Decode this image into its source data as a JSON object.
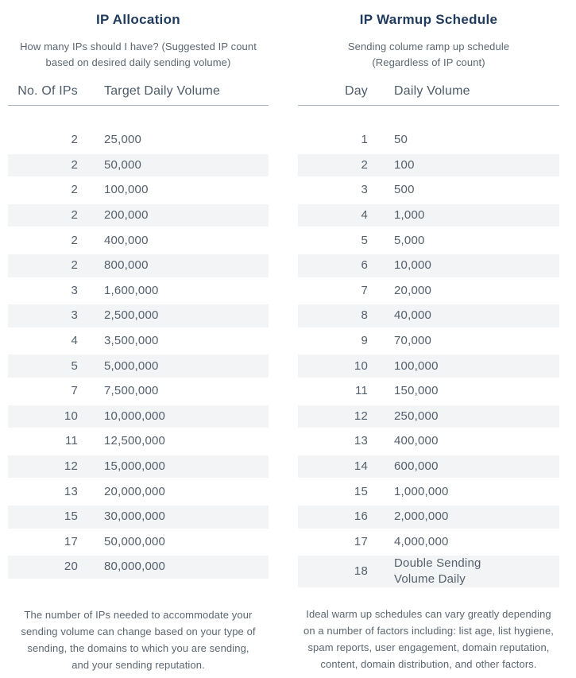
{
  "chart_data": [
    {
      "type": "table",
      "title": "IP Allocation",
      "subtitle": "How many IPs should I have? (Suggested IP count\nbased on desired daily sending volume)",
      "columns": [
        "No. Of IPs",
        "Target Daily Volume"
      ],
      "rows": [
        [
          "2",
          "25,000"
        ],
        [
          "2",
          "50,000"
        ],
        [
          "2",
          "100,000"
        ],
        [
          "2",
          "200,000"
        ],
        [
          "2",
          "400,000"
        ],
        [
          "2",
          "800,000"
        ],
        [
          "3",
          "1,600,000"
        ],
        [
          "3",
          "2,500,000"
        ],
        [
          "4",
          "3,500,000"
        ],
        [
          "5",
          "5,000,000"
        ],
        [
          "7",
          "7,500,000"
        ],
        [
          "10",
          "10,000,000"
        ],
        [
          "11",
          "12,500,000"
        ],
        [
          "12",
          "15,000,000"
        ],
        [
          "13",
          "20,000,000"
        ],
        [
          "15",
          "30,000,000"
        ],
        [
          "17",
          "50,000,000"
        ],
        [
          "20",
          "80,000,000"
        ]
      ],
      "footnote": "The number of IPs needed to accommodate your\nsending volume can change based on your type of\nsending, the domains to which you are sending,\nand your sending reputation.",
      "layout": {
        "zebra": "even rows shaded",
        "grid": "off",
        "header_divider": true
      }
    },
    {
      "type": "table",
      "title": "IP Warmup Schedule",
      "subtitle": "Sending colume ramp up schedule\n(Regardless of IP count)",
      "columns": [
        "Day",
        "Daily Volume"
      ],
      "rows": [
        [
          "1",
          "50"
        ],
        [
          "2",
          "100"
        ],
        [
          "3",
          "500"
        ],
        [
          "4",
          "1,000"
        ],
        [
          "5",
          "5,000"
        ],
        [
          "6",
          "10,000"
        ],
        [
          "7",
          "20,000"
        ],
        [
          "8",
          "40,000"
        ],
        [
          "9",
          "70,000"
        ],
        [
          "10",
          "100,000"
        ],
        [
          "11",
          "150,000"
        ],
        [
          "12",
          "250,000"
        ],
        [
          "13",
          "400,000"
        ],
        [
          "14",
          "600,000"
        ],
        [
          "15",
          "1,000,000"
        ],
        [
          "16",
          "2,000,000"
        ],
        [
          "17",
          "4,000,000"
        ],
        [
          "18",
          "Double Sending\nVolume Daily"
        ]
      ],
      "footnote": "Ideal warm up schedules can vary greatly depending\non a number of factors including: list age, list hygiene,\nspam reports, user engagement, domain reputation,\ncontent, domain distribution, and other factors.",
      "layout": {
        "zebra": "even rows shaded",
        "grid": "off",
        "header_divider": true
      }
    }
  ],
  "colors": {
    "title": "#1e3a5c",
    "body_text": "#55606c",
    "muted_text": "#5b6670",
    "row_stripe": "#f2f4f6",
    "divider": "#a9b6c2",
    "background": "#ffffff"
  }
}
